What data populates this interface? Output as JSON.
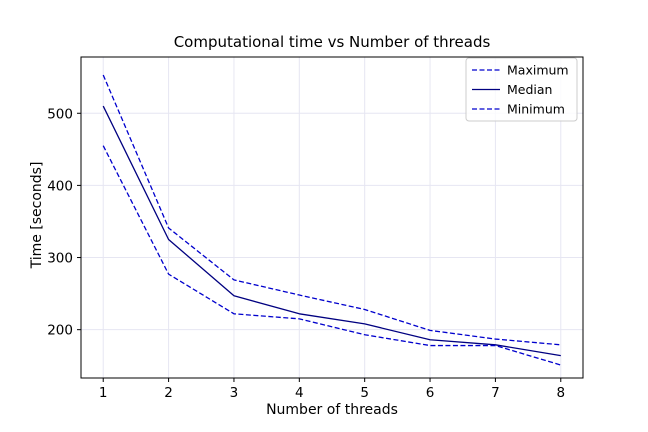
{
  "chart_data": {
    "type": "line",
    "title": "Computational time vs Number of threads",
    "xlabel": "Number of threads",
    "ylabel": "Time [seconds]",
    "x": [
      1,
      2,
      3,
      4,
      5,
      6,
      7,
      8
    ],
    "xlim": [
      0.66,
      8.34
    ],
    "ylim": [
      133,
      578
    ],
    "xticks": [
      1,
      2,
      3,
      4,
      5,
      6,
      7,
      8
    ],
    "yticks": [
      200,
      300,
      400,
      500
    ],
    "grid": true,
    "legend_position": "top-right",
    "series": [
      {
        "name": "Maximum",
        "values": [
          553,
          341,
          269,
          248,
          228,
          199,
          187,
          179
        ],
        "color": "#0000cd",
        "style": "dashed"
      },
      {
        "name": "Median",
        "values": [
          510,
          325,
          247,
          222,
          208,
          186,
          179,
          164
        ],
        "color": "#000080",
        "style": "solid"
      },
      {
        "name": "Minimum",
        "values": [
          455,
          277,
          222,
          215,
          193,
          178,
          178,
          151
        ],
        "color": "#0000cd",
        "style": "dashed"
      }
    ]
  }
}
